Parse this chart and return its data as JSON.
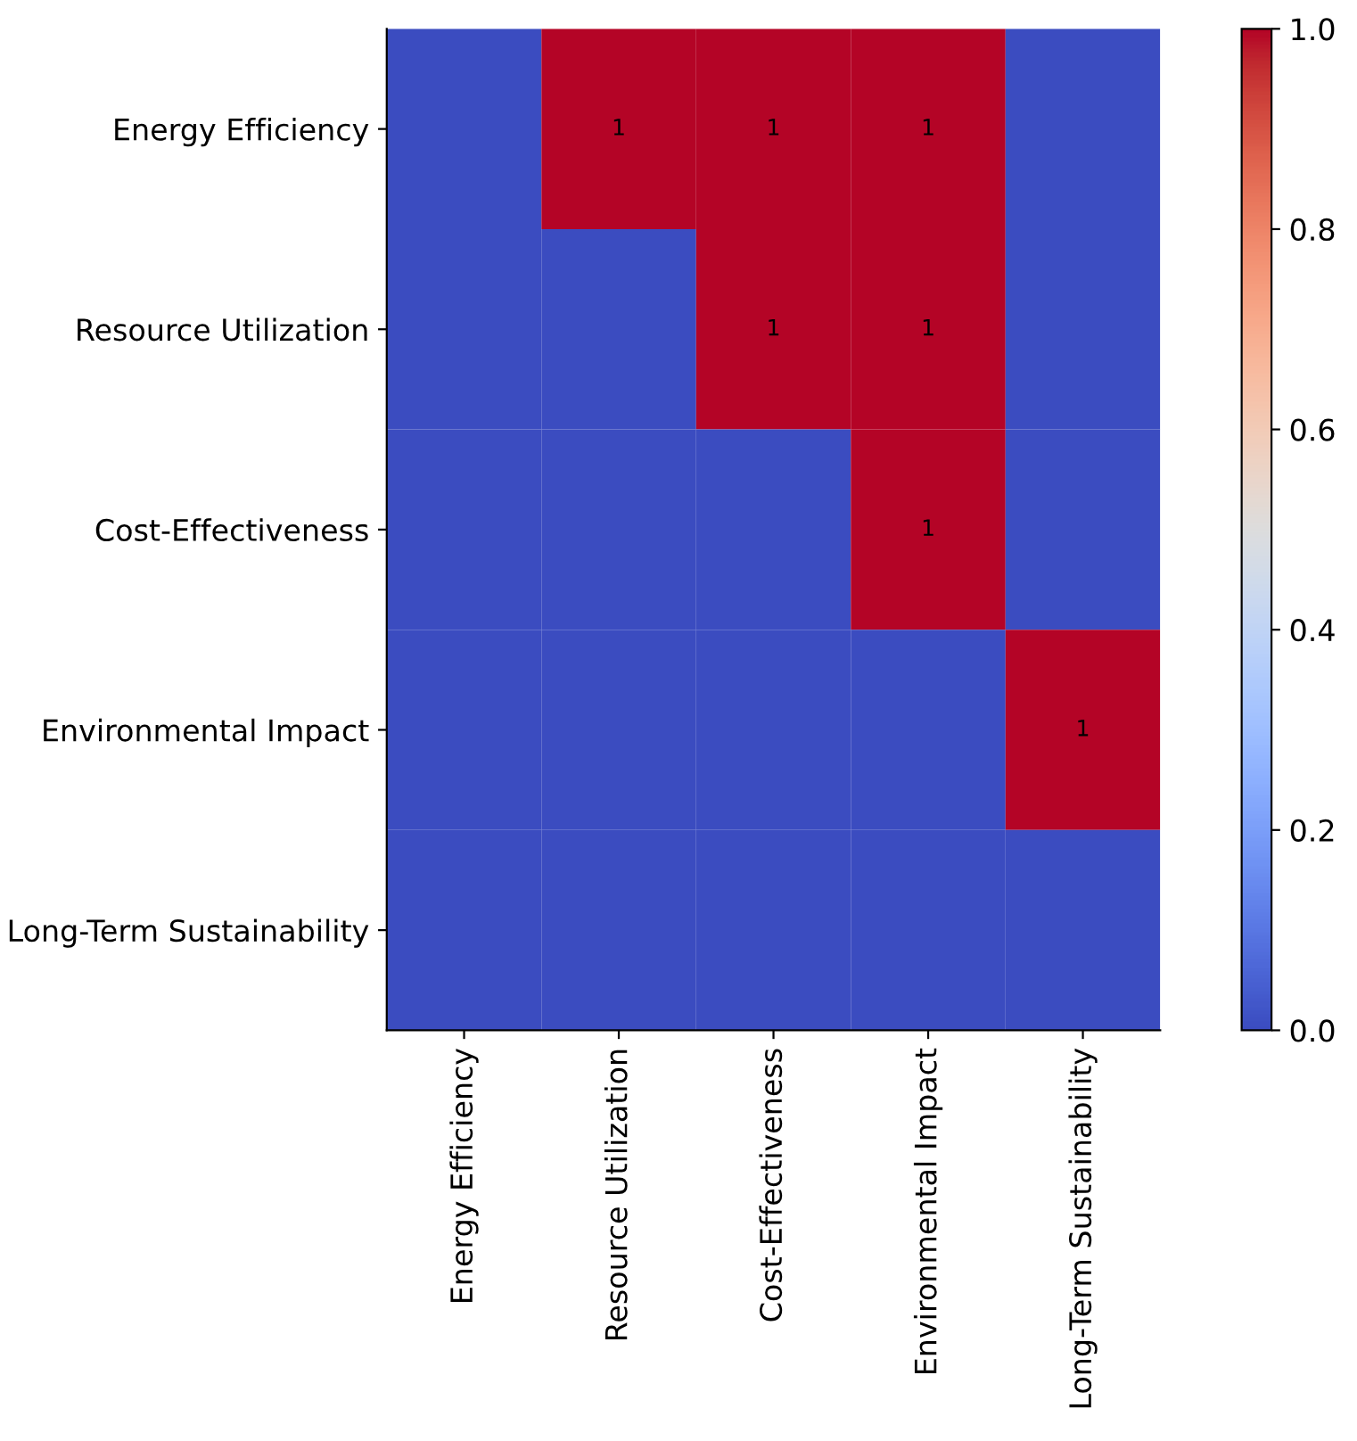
{
  "chart_data": {
    "type": "heatmap",
    "categories": [
      "Energy Efficiency",
      "Resource Utilization",
      "Cost-Effectiveness",
      "Environmental Impact",
      "Long-Term Sustainability"
    ],
    "y_categories": [
      "Energy Efficiency",
      "Resource Utilization",
      "Cost-Effectiveness",
      "Environmental Impact",
      "Long-Term Sustainability"
    ],
    "cells": [
      [
        0,
        1,
        1,
        1,
        0
      ],
      [
        0,
        0,
        1,
        1,
        0
      ],
      [
        0,
        0,
        0,
        1,
        0
      ],
      [
        0,
        0,
        0,
        0,
        1
      ],
      [
        0,
        0,
        0,
        0,
        0
      ]
    ],
    "cell_labels": [
      [
        null,
        "1",
        "1",
        "1",
        null
      ],
      [
        null,
        null,
        "1",
        "1",
        null
      ],
      [
        null,
        null,
        null,
        "1",
        null
      ],
      [
        null,
        null,
        null,
        null,
        "1"
      ],
      [
        null,
        null,
        null,
        null,
        null
      ]
    ],
    "clim": [
      0,
      1
    ],
    "cticks": [
      {
        "value": 0,
        "label": "0.0"
      },
      {
        "value": 0.2,
        "label": "0.2"
      },
      {
        "value": 0.4,
        "label": "0.4"
      },
      {
        "value": 0.6,
        "label": "0.6"
      },
      {
        "value": 0.8,
        "label": "0.8"
      },
      {
        "value": 1,
        "label": "1.0"
      }
    ]
  }
}
